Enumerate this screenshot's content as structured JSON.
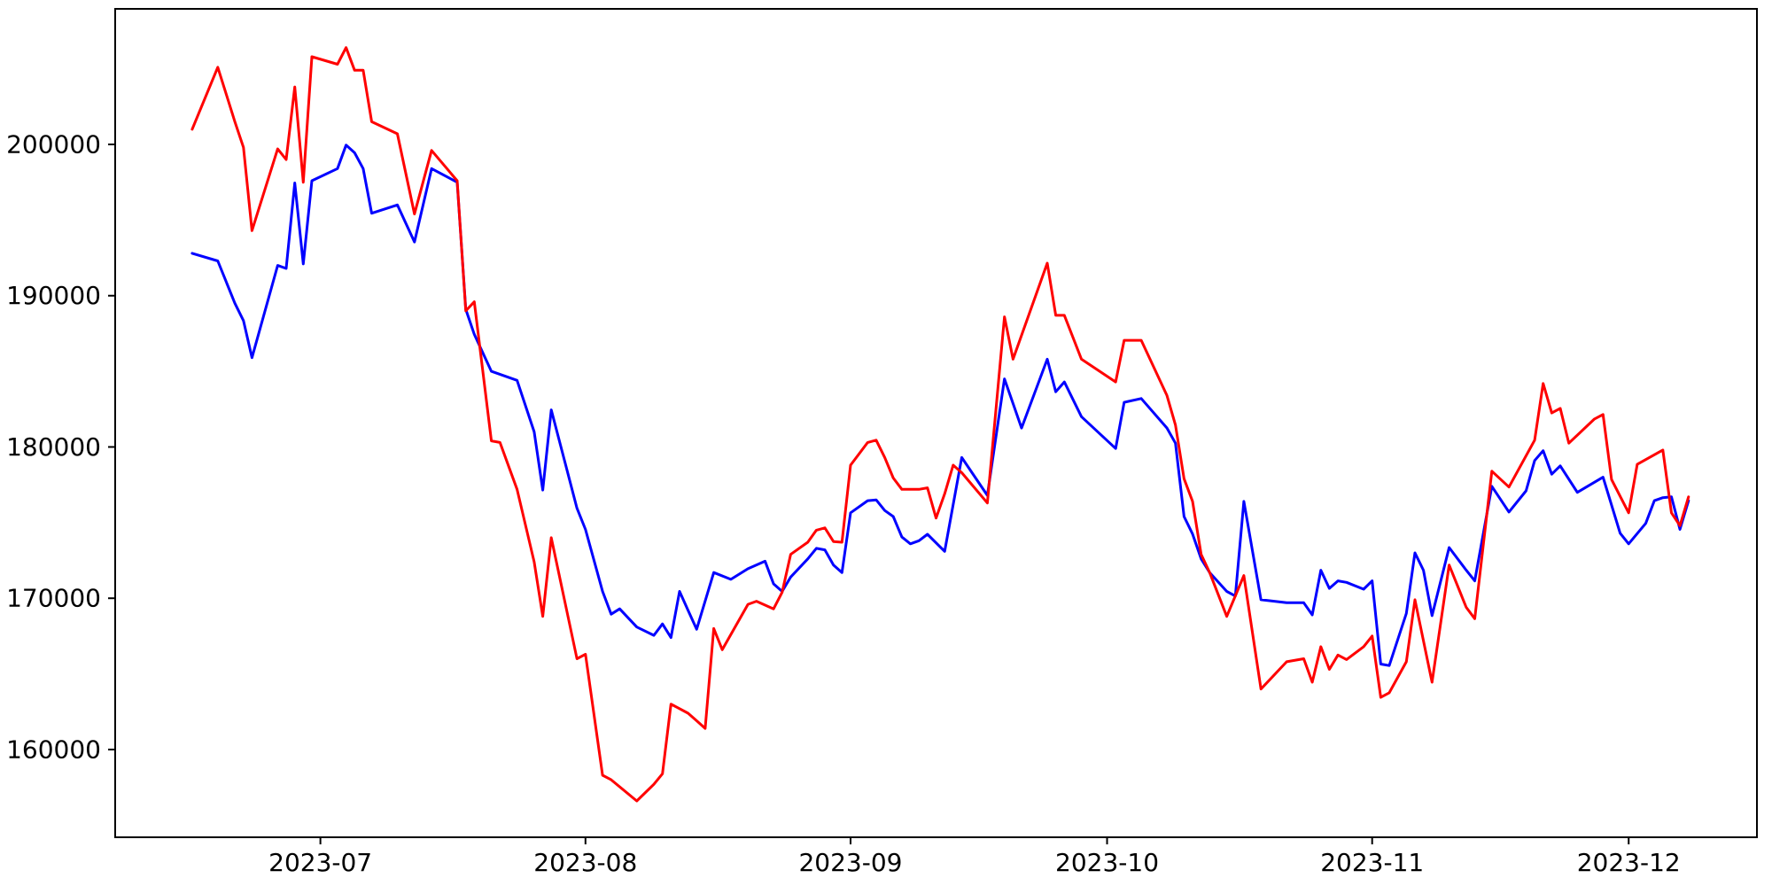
{
  "figure": {
    "background": "#ffffff",
    "axis_color": "#000000",
    "tick_label_color": "#000000",
    "tick_font_size": 28
  },
  "chart_data": {
    "type": "line",
    "title": "",
    "xlabel": "",
    "ylabel": "",
    "grid": false,
    "legend": "none",
    "x_axis": {
      "type": "date",
      "range": [
        "2023-06-07",
        "2023-12-16"
      ],
      "ticks": [
        {
          "label": "2023-07",
          "date": "2023-07-01"
        },
        {
          "label": "2023-08",
          "date": "2023-08-01"
        },
        {
          "label": "2023-09",
          "date": "2023-09-01"
        },
        {
          "label": "2023-10",
          "date": "2023-10-01"
        },
        {
          "label": "2023-11",
          "date": "2023-11-01"
        },
        {
          "label": "2023-12",
          "date": "2023-12-01"
        }
      ]
    },
    "y_axis": {
      "range": [
        154200,
        208960
      ],
      "ticks": [
        160000,
        170000,
        180000,
        190000,
        200000
      ]
    },
    "series": [
      {
        "name": "series-blue",
        "color": "#0000ff",
        "points": [
          [
            "2023-06-16",
            192800
          ],
          [
            "2023-06-19",
            192300
          ],
          [
            "2023-06-21",
            189500
          ],
          [
            "2023-06-22",
            188350
          ],
          [
            "2023-06-23",
            185900
          ],
          [
            "2023-06-26",
            192000
          ],
          [
            "2023-06-27",
            191800
          ],
          [
            "2023-06-28",
            197450
          ],
          [
            "2023-06-29",
            192100
          ],
          [
            "2023-06-30",
            197600
          ],
          [
            "2023-07-03",
            198400
          ],
          [
            "2023-07-04",
            199950
          ],
          [
            "2023-07-05",
            199450
          ],
          [
            "2023-07-06",
            198400
          ],
          [
            "2023-07-07",
            195450
          ],
          [
            "2023-07-10",
            196000
          ],
          [
            "2023-07-12",
            193550
          ],
          [
            "2023-07-14",
            198400
          ],
          [
            "2023-07-17",
            197500
          ],
          [
            "2023-07-18",
            189100
          ],
          [
            "2023-07-19",
            187450
          ],
          [
            "2023-07-21",
            185000
          ],
          [
            "2023-07-24",
            184400
          ],
          [
            "2023-07-26",
            181000
          ],
          [
            "2023-07-27",
            177150
          ],
          [
            "2023-07-28",
            182450
          ],
          [
            "2023-07-31",
            175950
          ],
          [
            "2023-08-01",
            174550
          ],
          [
            "2023-08-03",
            170450
          ],
          [
            "2023-08-04",
            168950
          ],
          [
            "2023-08-05",
            169300
          ],
          [
            "2023-08-07",
            168100
          ],
          [
            "2023-08-09",
            167550
          ],
          [
            "2023-08-10",
            168300
          ],
          [
            "2023-08-11",
            167400
          ],
          [
            "2023-08-12",
            170450
          ],
          [
            "2023-08-13",
            169200
          ],
          [
            "2023-08-14",
            167950
          ],
          [
            "2023-08-16",
            171700
          ],
          [
            "2023-08-18",
            171250
          ],
          [
            "2023-08-20",
            171950
          ],
          [
            "2023-08-22",
            172450
          ],
          [
            "2023-08-23",
            170950
          ],
          [
            "2023-08-24",
            170450
          ],
          [
            "2023-08-25",
            171400
          ],
          [
            "2023-08-27",
            172600
          ],
          [
            "2023-08-28",
            173300
          ],
          [
            "2023-08-29",
            173200
          ],
          [
            "2023-08-30",
            172200
          ],
          [
            "2023-08-31",
            171700
          ],
          [
            "2023-09-01",
            175650
          ],
          [
            "2023-09-03",
            176450
          ],
          [
            "2023-09-04",
            176500
          ],
          [
            "2023-09-05",
            175800
          ],
          [
            "2023-09-06",
            175400
          ],
          [
            "2023-09-07",
            174050
          ],
          [
            "2023-09-08",
            173600
          ],
          [
            "2023-09-09",
            173800
          ],
          [
            "2023-09-10",
            174230
          ],
          [
            "2023-09-12",
            173100
          ],
          [
            "2023-09-14",
            179300
          ],
          [
            "2023-09-17",
            176800
          ],
          [
            "2023-09-19",
            184500
          ],
          [
            "2023-09-21",
            181250
          ],
          [
            "2023-09-24",
            185800
          ],
          [
            "2023-09-25",
            183650
          ],
          [
            "2023-09-26",
            184300
          ],
          [
            "2023-09-28",
            182000
          ],
          [
            "2023-10-02",
            179900
          ],
          [
            "2023-10-03",
            182950
          ],
          [
            "2023-10-05",
            183200
          ],
          [
            "2023-10-08",
            181250
          ],
          [
            "2023-10-09",
            180250
          ],
          [
            "2023-10-10",
            175400
          ],
          [
            "2023-10-11",
            174250
          ],
          [
            "2023-10-12",
            172600
          ],
          [
            "2023-10-13",
            171700
          ],
          [
            "2023-10-15",
            170450
          ],
          [
            "2023-10-16",
            170150
          ],
          [
            "2023-10-17",
            176400
          ],
          [
            "2023-10-19",
            169900
          ],
          [
            "2023-10-22",
            169700
          ],
          [
            "2023-10-24",
            169700
          ],
          [
            "2023-10-25",
            168900
          ],
          [
            "2023-10-26",
            171850
          ],
          [
            "2023-10-27",
            170650
          ],
          [
            "2023-10-28",
            171150
          ],
          [
            "2023-10-29",
            171050
          ],
          [
            "2023-10-31",
            170600
          ],
          [
            "2023-11-01",
            171150
          ],
          [
            "2023-11-02",
            165650
          ],
          [
            "2023-11-03",
            165550
          ],
          [
            "2023-11-05",
            169000
          ],
          [
            "2023-11-06",
            173000
          ],
          [
            "2023-11-07",
            171850
          ],
          [
            "2023-11-08",
            168850
          ],
          [
            "2023-11-10",
            173350
          ],
          [
            "2023-11-12",
            171850
          ],
          [
            "2023-11-13",
            171150
          ],
          [
            "2023-11-15",
            177400
          ],
          [
            "2023-11-17",
            175700
          ],
          [
            "2023-11-19",
            177100
          ],
          [
            "2023-11-20",
            179100
          ],
          [
            "2023-11-21",
            179750
          ],
          [
            "2023-11-22",
            178200
          ],
          [
            "2023-11-23",
            178750
          ],
          [
            "2023-11-25",
            177000
          ],
          [
            "2023-11-28",
            178000
          ],
          [
            "2023-11-30",
            174300
          ],
          [
            "2023-12-01",
            173600
          ],
          [
            "2023-12-03",
            174950
          ],
          [
            "2023-12-04",
            176450
          ],
          [
            "2023-12-05",
            176650
          ],
          [
            "2023-12-06",
            176700
          ],
          [
            "2023-12-07",
            174550
          ],
          [
            "2023-12-08",
            176450
          ]
        ]
      },
      {
        "name": "series-red",
        "color": "#ff0000",
        "points": [
          [
            "2023-06-16",
            201000
          ],
          [
            "2023-06-19",
            205100
          ],
          [
            "2023-06-21",
            201500
          ],
          [
            "2023-06-22",
            199800
          ],
          [
            "2023-06-23",
            194300
          ],
          [
            "2023-06-26",
            199700
          ],
          [
            "2023-06-27",
            199000
          ],
          [
            "2023-06-28",
            203800
          ],
          [
            "2023-06-29",
            197500
          ],
          [
            "2023-06-30",
            205800
          ],
          [
            "2023-07-03",
            205300
          ],
          [
            "2023-07-04",
            206400
          ],
          [
            "2023-07-05",
            204900
          ],
          [
            "2023-07-06",
            204900
          ],
          [
            "2023-07-07",
            201500
          ],
          [
            "2023-07-10",
            200700
          ],
          [
            "2023-07-12",
            195400
          ],
          [
            "2023-07-14",
            199600
          ],
          [
            "2023-07-17",
            197600
          ],
          [
            "2023-07-18",
            189000
          ],
          [
            "2023-07-19",
            189600
          ],
          [
            "2023-07-21",
            180400
          ],
          [
            "2023-07-22",
            180300
          ],
          [
            "2023-07-24",
            177200
          ],
          [
            "2023-07-26",
            172400
          ],
          [
            "2023-07-27",
            168800
          ],
          [
            "2023-07-28",
            174000
          ],
          [
            "2023-07-31",
            166000
          ],
          [
            "2023-08-01",
            166300
          ],
          [
            "2023-08-03",
            158300
          ],
          [
            "2023-08-04",
            158000
          ],
          [
            "2023-08-07",
            156600
          ],
          [
            "2023-08-09",
            157700
          ],
          [
            "2023-08-10",
            158400
          ],
          [
            "2023-08-11",
            163000
          ],
          [
            "2023-08-13",
            162400
          ],
          [
            "2023-08-14",
            161900
          ],
          [
            "2023-08-15",
            161400
          ],
          [
            "2023-08-16",
            168000
          ],
          [
            "2023-08-17",
            166600
          ],
          [
            "2023-08-20",
            169600
          ],
          [
            "2023-08-21",
            169800
          ],
          [
            "2023-08-23",
            169300
          ],
          [
            "2023-08-24",
            170400
          ],
          [
            "2023-08-25",
            172900
          ],
          [
            "2023-08-27",
            173700
          ],
          [
            "2023-08-28",
            174500
          ],
          [
            "2023-08-29",
            174650
          ],
          [
            "2023-08-30",
            173750
          ],
          [
            "2023-08-31",
            173700
          ],
          [
            "2023-09-01",
            178800
          ],
          [
            "2023-09-03",
            180300
          ],
          [
            "2023-09-04",
            180450
          ],
          [
            "2023-09-05",
            179300
          ],
          [
            "2023-09-06",
            177950
          ],
          [
            "2023-09-07",
            177200
          ],
          [
            "2023-09-09",
            177200
          ],
          [
            "2023-09-10",
            177300
          ],
          [
            "2023-09-11",
            175300
          ],
          [
            "2023-09-12",
            176900
          ],
          [
            "2023-09-13",
            178800
          ],
          [
            "2023-09-14",
            178300
          ],
          [
            "2023-09-17",
            176300
          ],
          [
            "2023-09-19",
            188600
          ],
          [
            "2023-09-20",
            185800
          ],
          [
            "2023-09-24",
            192150
          ],
          [
            "2023-09-25",
            188700
          ],
          [
            "2023-09-26",
            188700
          ],
          [
            "2023-09-28",
            185800
          ],
          [
            "2023-10-02",
            184300
          ],
          [
            "2023-10-03",
            187050
          ],
          [
            "2023-10-05",
            187050
          ],
          [
            "2023-10-08",
            183400
          ],
          [
            "2023-10-09",
            181450
          ],
          [
            "2023-10-10",
            177900
          ],
          [
            "2023-10-11",
            176400
          ],
          [
            "2023-10-12",
            172900
          ],
          [
            "2023-10-13",
            171700
          ],
          [
            "2023-10-15",
            168800
          ],
          [
            "2023-10-17",
            171500
          ],
          [
            "2023-10-19",
            164000
          ],
          [
            "2023-10-22",
            165800
          ],
          [
            "2023-10-24",
            166000
          ],
          [
            "2023-10-25",
            164450
          ],
          [
            "2023-10-26",
            166800
          ],
          [
            "2023-10-27",
            165300
          ],
          [
            "2023-10-28",
            166250
          ],
          [
            "2023-10-29",
            165950
          ],
          [
            "2023-10-31",
            166800
          ],
          [
            "2023-11-01",
            167500
          ],
          [
            "2023-11-02",
            163450
          ],
          [
            "2023-11-03",
            163750
          ],
          [
            "2023-11-05",
            165800
          ],
          [
            "2023-11-06",
            169900
          ],
          [
            "2023-11-08",
            164450
          ],
          [
            "2023-11-10",
            172200
          ],
          [
            "2023-11-12",
            169400
          ],
          [
            "2023-11-13",
            168650
          ],
          [
            "2023-11-15",
            178400
          ],
          [
            "2023-11-17",
            177350
          ],
          [
            "2023-11-20",
            180450
          ],
          [
            "2023-11-21",
            184200
          ],
          [
            "2023-11-22",
            182250
          ],
          [
            "2023-11-23",
            182550
          ],
          [
            "2023-11-24",
            180250
          ],
          [
            "2023-11-27",
            181850
          ],
          [
            "2023-11-28",
            182150
          ],
          [
            "2023-11-29",
            177850
          ],
          [
            "2023-12-01",
            175650
          ],
          [
            "2023-12-02",
            178850
          ],
          [
            "2023-12-05",
            179800
          ],
          [
            "2023-12-06",
            175650
          ],
          [
            "2023-12-07",
            174800
          ],
          [
            "2023-12-08",
            176700
          ]
        ]
      }
    ]
  }
}
